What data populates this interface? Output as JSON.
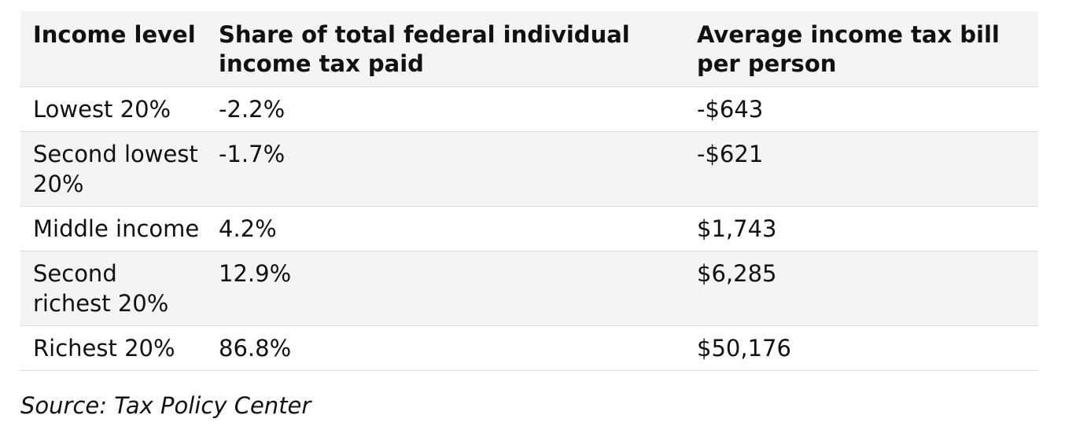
{
  "chart_data": {
    "type": "table",
    "columns": [
      "Income level",
      "Share of total federal individual income tax paid",
      "Average income tax bill per person"
    ],
    "rows": [
      [
        "Lowest 20%",
        "-2.2%",
        "-$643"
      ],
      [
        "Second lowest 20%",
        "-1.7%",
        "-$621"
      ],
      [
        "Middle income",
        "4.2%",
        "$1,743"
      ],
      [
        "Second richest 20%",
        "12.9%",
        "$6,285"
      ],
      [
        "Richest 20%",
        "86.8%",
        "$50,176"
      ]
    ],
    "source": "Source: Tax Policy Center"
  }
}
